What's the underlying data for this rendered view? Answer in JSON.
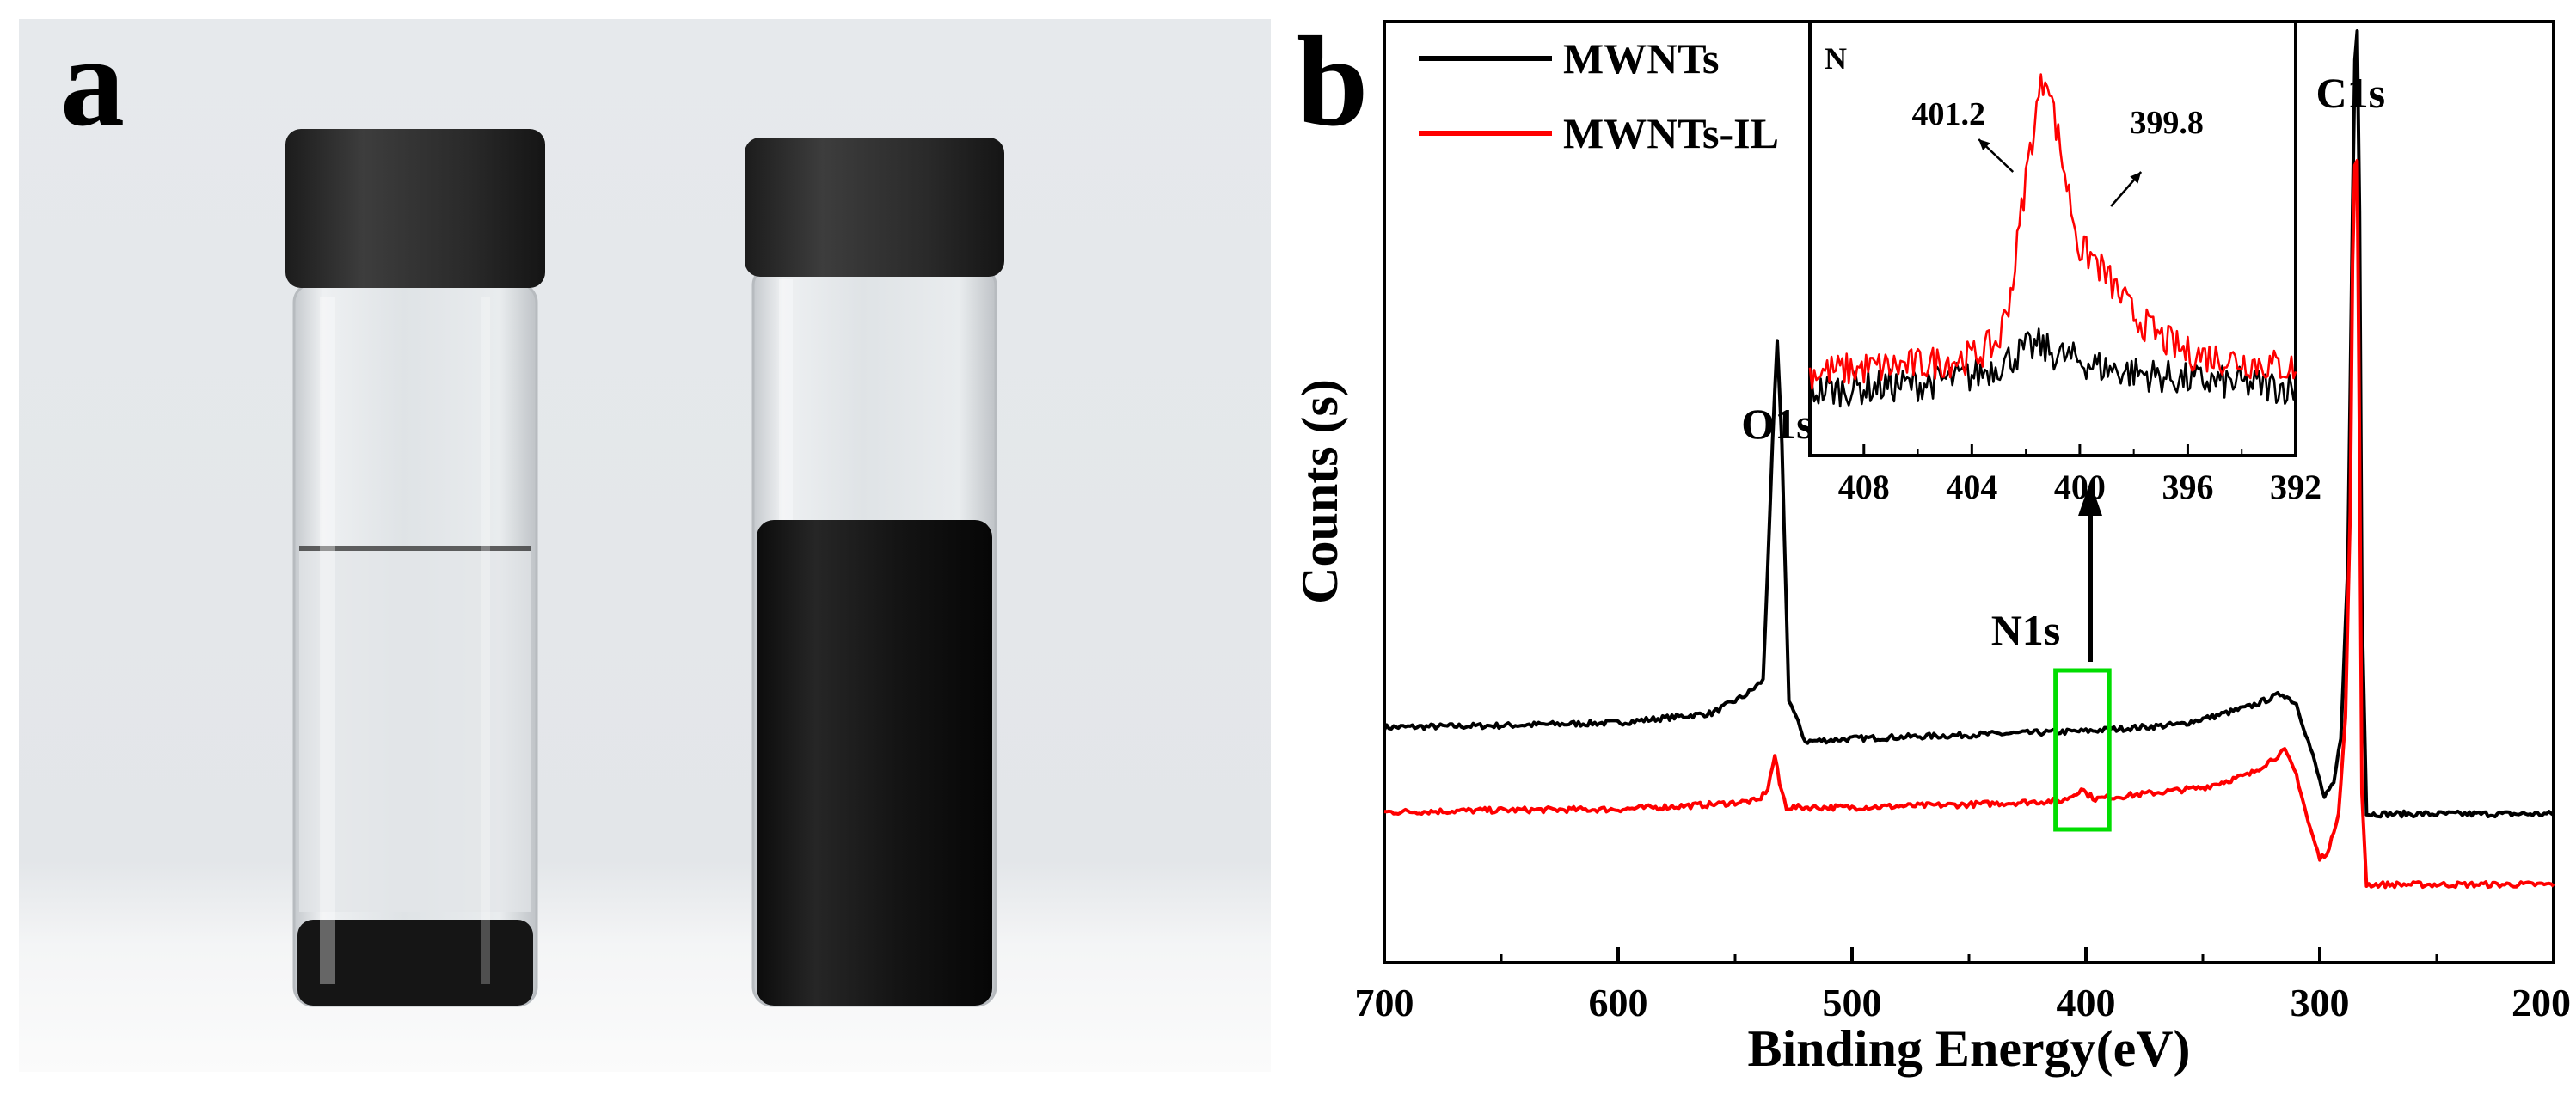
{
  "panel_a": {
    "label": "a",
    "colors": {
      "background": "#e9ecef",
      "cap": "#2a2a2a",
      "glass": "#e4e7ea",
      "carbon": "#141414"
    }
  },
  "panel_b": {
    "label": "b"
  },
  "chart_data": [
    {
      "type": "line",
      "title": "",
      "xlabel": "Binding Energy(eV)",
      "ylabel": "Counts (s)",
      "xlim": [
        700,
        200
      ],
      "x_reversed": true,
      "xticks": [
        700,
        600,
        500,
        400,
        300,
        200
      ],
      "xtick_labels": [
        "700",
        "600",
        "500",
        "400",
        "300",
        "200"
      ],
      "yticks_shown": false,
      "grid": false,
      "legend": {
        "placement": "top-left",
        "entries": [
          "MWNTs",
          "MWNTs-IL"
        ]
      },
      "series": [
        {
          "name": "MWNTs",
          "color": "#000000",
          "x": [
            700,
            650,
            600,
            560,
            545,
            538,
            534,
            532,
            530,
            527,
            520,
            500,
            450,
            400,
            360,
            345,
            330,
            316,
            310,
            303,
            298,
            294,
            291,
            288,
            286,
            285,
            284,
            283.5,
            283,
            282,
            280,
            270,
            250,
            230,
            200
          ],
          "y": [
            25.0,
            25.2,
            25.5,
            26.5,
            28.5,
            30,
            55,
            66,
            55,
            28,
            23.5,
            23.8,
            24.2,
            24.6,
            25.3,
            26.2,
            27.2,
            28.6,
            27.5,
            22,
            17.5,
            19,
            24,
            42,
            80,
            96,
            99,
            97,
            80,
            38,
            15.8,
            15.8,
            15.8,
            15.8,
            15.8
          ]
        },
        {
          "name": "MWNTs-IL",
          "color": "#ff0000",
          "x": [
            700,
            650,
            600,
            560,
            540,
            536,
            533,
            531,
            528,
            520,
            500,
            450,
            410,
            404,
            402,
            400,
            396,
            380,
            350,
            330,
            315,
            310,
            305,
            300,
            296,
            292,
            289,
            287,
            286,
            285,
            284,
            283.5,
            283,
            282,
            280,
            270,
            250,
            230,
            200
          ],
          "y": [
            16,
            16.2,
            16.3,
            16.8,
            17.2,
            18.5,
            22,
            19,
            16.5,
            16.5,
            16.5,
            16.8,
            17.2,
            18,
            18.6,
            18,
            17.4,
            17.8,
            18.6,
            20,
            22.5,
            20,
            15,
            11,
            12,
            16,
            26,
            48,
            74,
            85,
            85,
            80,
            55,
            18,
            8.3,
            8.3,
            8.3,
            8.3,
            8.3
          ]
        }
      ],
      "annotations": [
        {
          "text": "O1s",
          "x": 532
        },
        {
          "text": "N1s",
          "x": 400
        },
        {
          "text": "C1s",
          "x": 285
        }
      ],
      "highlight_box": {
        "color": "#00dd00",
        "x": [
          413,
          390
        ]
      }
    },
    {
      "type": "line",
      "title": "",
      "inset": true,
      "corner_label": "N",
      "xlim": [
        410,
        392
      ],
      "x_reversed": true,
      "xticks": [
        408,
        404,
        400,
        396,
        392
      ],
      "xtick_labels": [
        "408",
        "404",
        "400",
        "396",
        "392"
      ],
      "yticks_shown": false,
      "grid": false,
      "peak_labels": [
        {
          "text": "401.2",
          "x": 401.2
        },
        {
          "text": "399.8",
          "x": 399.8
        }
      ],
      "series": [
        {
          "name": "",
          "color": "#000000",
          "x": [
            410,
            408,
            406,
            404,
            403,
            402,
            401.5,
            401,
            400,
            399,
            398,
            396,
            394,
            392
          ],
          "y": [
            10,
            11,
            12,
            14,
            17,
            21,
            22,
            20,
            18,
            16,
            15,
            13,
            12,
            11
          ]
        },
        {
          "name": "",
          "color": "#ff0000",
          "x": [
            410,
            408,
            406,
            404,
            403,
            402.5,
            402,
            401.5,
            401.2,
            401,
            400.5,
            400,
            399.5,
            399,
            398,
            397,
            396,
            394,
            392
          ],
          "y": [
            15,
            16,
            17,
            19,
            23,
            38,
            66,
            88,
            94,
            84,
            65,
            47,
            45,
            40,
            30,
            24,
            20,
            18,
            16
          ]
        }
      ]
    }
  ]
}
